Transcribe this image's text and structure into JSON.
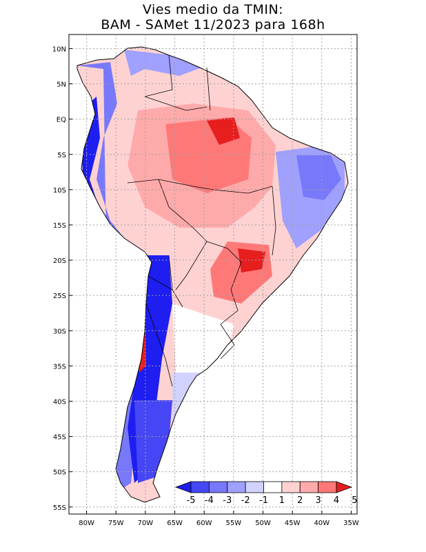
{
  "title": {
    "line1": "Vies medio da TMIN:",
    "line2": "BAM - SAMet 11/2023  para 168h"
  },
  "map": {
    "region": "South America",
    "lat_ticks": [
      "10N",
      "5N",
      "EQ",
      "5S",
      "10S",
      "15S",
      "20S",
      "25S",
      "30S",
      "35S",
      "40S",
      "45S",
      "50S",
      "55S"
    ],
    "lon_ticks": [
      "80W",
      "75W",
      "70W",
      "65W",
      "60W",
      "55W",
      "50W",
      "45W",
      "40W",
      "35W"
    ],
    "lat_range": [
      -56,
      12
    ],
    "lon_range": [
      -83,
      -34
    ],
    "colors": {
      "neg5": "#1e1ef0",
      "neg4": "#4646f5",
      "neg3": "#7878fa",
      "neg2": "#a0a0ff",
      "neg1": "#d2d2ff",
      "zero": "#ffffff",
      "pos1": "#ffd2d2",
      "pos2": "#ffaaaa",
      "pos3": "#ff7878",
      "pos4": "#f54646",
      "pos5": "#e61e1e",
      "land_outline": "#000000",
      "grid": "#a0a0a0"
    }
  },
  "colorbar": {
    "labels": [
      "-5",
      "-4",
      "-3",
      "-2",
      "-1",
      "1",
      "2",
      "3",
      "4",
      "5"
    ],
    "colors": [
      "#1e1ef0",
      "#4646f5",
      "#7878fa",
      "#a0a0ff",
      "#d2d2ff",
      "#ffffff",
      "#ffd2d2",
      "#ffaaaa",
      "#ff7878",
      "#e61e1e"
    ]
  }
}
